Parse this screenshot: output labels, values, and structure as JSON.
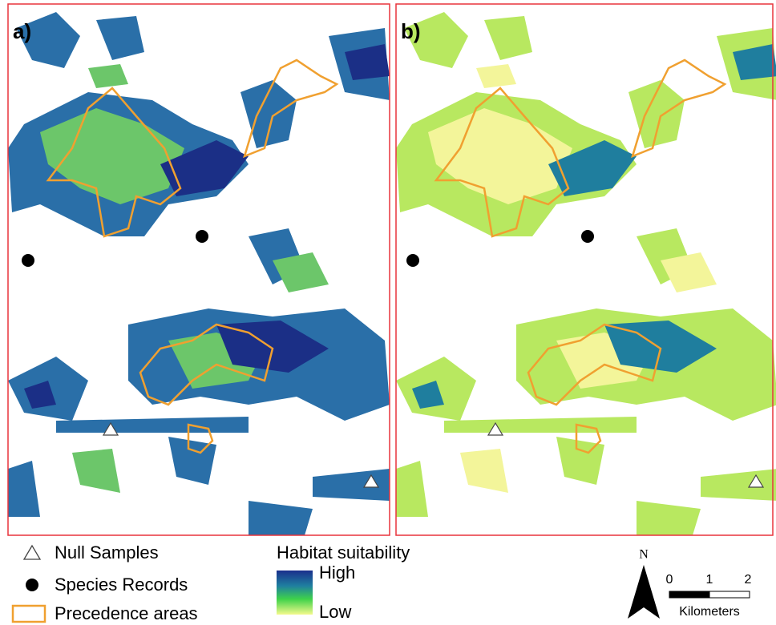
{
  "panels": [
    {
      "label": "a)"
    },
    {
      "label": "b)"
    }
  ],
  "legend": {
    "items": [
      "Null Samples",
      "Species Records",
      "Precedence areas"
    ],
    "colorbar": {
      "title": "Habitat suitability",
      "high": "High",
      "low": "Low"
    }
  },
  "north_arrow": "N",
  "scale_bar": {
    "ticks": [
      "0",
      "1",
      "2"
    ],
    "unit": "Kilometers"
  }
}
